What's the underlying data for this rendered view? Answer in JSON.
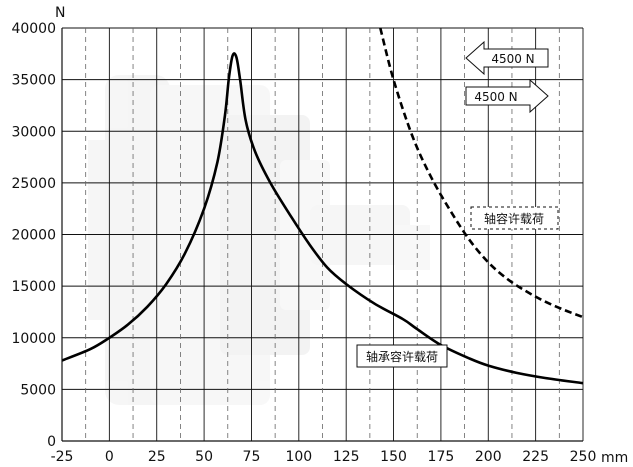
{
  "chart_data": {
    "type": "line",
    "x_unit": "mm",
    "y_unit": "N",
    "xlim": [
      -25,
      250
    ],
    "ylim": [
      0,
      40000
    ],
    "x_ticks": [
      -25,
      0,
      25,
      50,
      75,
      100,
      125,
      150,
      175,
      200,
      225,
      250
    ],
    "y_ticks": [
      0,
      5000,
      10000,
      15000,
      20000,
      25000,
      30000,
      35000,
      40000
    ],
    "grid": true,
    "series": [
      {
        "name": "轴承容许载荷",
        "style": "solid",
        "points": [
          [
            -25,
            7800
          ],
          [
            -10,
            8900
          ],
          [
            0,
            10000
          ],
          [
            10,
            11300
          ],
          [
            20,
            13000
          ],
          [
            30,
            15200
          ],
          [
            40,
            18200
          ],
          [
            50,
            22500
          ],
          [
            57,
            27000
          ],
          [
            61,
            31500
          ],
          [
            63,
            35000
          ],
          [
            65,
            37300
          ],
          [
            67,
            37200
          ],
          [
            69,
            35000
          ],
          [
            72,
            31000
          ],
          [
            77,
            28000
          ],
          [
            85,
            25000
          ],
          [
            95,
            22000
          ],
          [
            105,
            19200
          ],
          [
            115,
            16800
          ],
          [
            125,
            15200
          ],
          [
            140,
            13300
          ],
          [
            155,
            11800
          ],
          [
            162,
            10900
          ],
          [
            175,
            9300
          ],
          [
            190,
            8000
          ],
          [
            200,
            7300
          ],
          [
            215,
            6600
          ],
          [
            230,
            6100
          ],
          [
            250,
            5600
          ]
        ]
      },
      {
        "name": "轴容许载荷",
        "style": "dashed",
        "points": [
          [
            143,
            40000
          ],
          [
            150,
            35000
          ],
          [
            160,
            29500
          ],
          [
            170,
            25500
          ],
          [
            180,
            22300
          ],
          [
            190,
            19500
          ],
          [
            200,
            17300
          ],
          [
            210,
            15700
          ],
          [
            220,
            14500
          ],
          [
            230,
            13500
          ],
          [
            240,
            12700
          ],
          [
            250,
            12000
          ]
        ]
      }
    ],
    "annotations": {
      "arrow_left": "4500 N",
      "arrow_right": "4500 N",
      "label_shaft": "轴容许载荷",
      "label_bearing": "轴承容许载荷"
    },
    "axis_labels": {
      "y": "N",
      "x": "mm"
    }
  }
}
